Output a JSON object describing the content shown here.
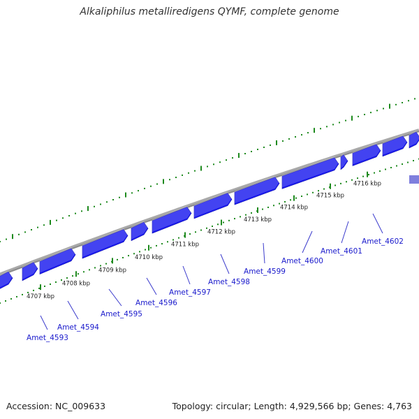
{
  "title": "Alkaliphilus metalliredigens QYMF, complete genome",
  "accession": "Accession: NC_009633",
  "topology": "Topology: circular; Length: 4,929,566 bp; Genes: 4,763",
  "colors": {
    "gene_forward": "#1a1aee",
    "gene_highlight": "#7f7fdd",
    "backbone": "#8c8c8c",
    "tick": "#1e8a1e",
    "label": "#1a1acc",
    "leader": "#3a3acc"
  },
  "kbp_labels": [
    "4707 kbp",
    "4708 kbp",
    "4709 kbp",
    "4710 kbp",
    "4711 kbp",
    "4712 kbp",
    "4713 kbp",
    "4714 kbp",
    "4715 kbp",
    "4716 kbp"
  ],
  "gene_labels": [
    "Amet_4593",
    "Amet_4594",
    "Amet_4595",
    "Amet_4596",
    "Amet_4597",
    "Amet_4598",
    "Amet_4599",
    "Amet_4600",
    "Amet_4601",
    "Amet_4602"
  ]
}
